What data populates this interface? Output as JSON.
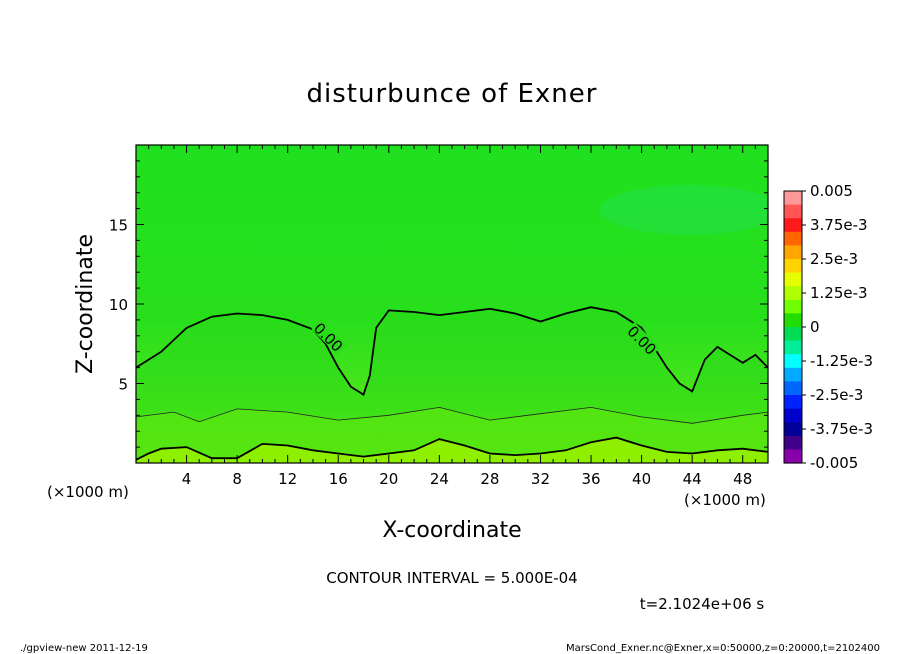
{
  "chart_data": {
    "type": "heatmap",
    "title": "disturbunce of Exner",
    "xlabel": "X-coordinate",
    "ylabel": "Z-coordinate",
    "x_unit": "(×1000 m)",
    "xlim": [
      0,
      50
    ],
    "ylim": [
      0,
      20
    ],
    "x_ticks": [
      4,
      8,
      12,
      16,
      20,
      24,
      28,
      32,
      36,
      40,
      44,
      48
    ],
    "y_ticks": [
      5,
      10,
      15
    ],
    "contour_label": "0.00",
    "contour_interval_text": "CONTOUR INTERVAL = 5.000E-04",
    "time_text": "t=2.1024e+06 s",
    "colorbar": {
      "labels": [
        "0.005",
        "3.75e-3",
        "2.5e-3",
        "1.25e-3",
        "0",
        "-1.25e-3",
        "-2.5e-3",
        "-3.75e-3",
        "-0.005"
      ],
      "values": [
        0.005,
        0.00375,
        0.0025,
        0.00125,
        0,
        -0.00125,
        -0.0025,
        -0.00375,
        -0.005
      ],
      "colors": [
        "#ff9999",
        "#ff5555",
        "#ff1a1a",
        "#ff6600",
        "#ffa500",
        "#ffd200",
        "#e6ff00",
        "#b0ff00",
        "#70ff00",
        "#22dd00",
        "#00dd55",
        "#00ee99",
        "#00ffff",
        "#00aaff",
        "#0066ff",
        "#0022ff",
        "#0000cc",
        "#000099",
        "#400088",
        "#8800aa"
      ]
    },
    "zero_contour_x": [
      0,
      2,
      4,
      6,
      8,
      10,
      12,
      14,
      15,
      16,
      17,
      18,
      18.5,
      19,
      20,
      22,
      24,
      26,
      28,
      30,
      32,
      34,
      36,
      38,
      40,
      42,
      43,
      44,
      45,
      46,
      47,
      48,
      49,
      50
    ],
    "zero_contour_y": [
      6.0,
      7.0,
      8.5,
      9.2,
      9.4,
      9.3,
      9.0,
      8.4,
      7.5,
      6.0,
      4.8,
      4.3,
      5.5,
      8.5,
      9.6,
      9.5,
      9.3,
      9.5,
      9.7,
      9.4,
      8.9,
      9.4,
      9.8,
      9.5,
      8.5,
      6.0,
      5.0,
      4.5,
      6.5,
      7.3,
      6.8,
      6.3,
      6.8,
      6.0
    ],
    "level_band_contours": [
      {
        "x": [
          0,
          3,
          5,
          8,
          12,
          16,
          20,
          24,
          28,
          32,
          36,
          40,
          44,
          48,
          50
        ],
        "y": [
          2.9,
          3.2,
          2.6,
          3.4,
          3.2,
          2.7,
          3.0,
          3.5,
          2.7,
          3.1,
          3.5,
          2.9,
          2.5,
          3.0,
          3.2
        ]
      },
      {
        "x": [
          0,
          1,
          2,
          4,
          6,
          8,
          10,
          12,
          14,
          16,
          18,
          20,
          22,
          24,
          26,
          28,
          30,
          32,
          34,
          36,
          38,
          40,
          42,
          44,
          46,
          48,
          50
        ],
        "y": [
          0.2,
          0.6,
          0.9,
          1.0,
          0.3,
          0.3,
          1.2,
          1.1,
          0.8,
          0.6,
          0.4,
          0.6,
          0.8,
          1.5,
          1.1,
          0.6,
          0.5,
          0.6,
          0.8,
          1.3,
          1.6,
          1.1,
          0.7,
          0.6,
          0.8,
          0.9,
          0.7
        ]
      }
    ]
  },
  "footer": {
    "left": "./gpview-new   2011-12-19",
    "right": "MarsCond_Exner.nc@Exner,x=0:50000,z=0:20000,t=2102400"
  }
}
